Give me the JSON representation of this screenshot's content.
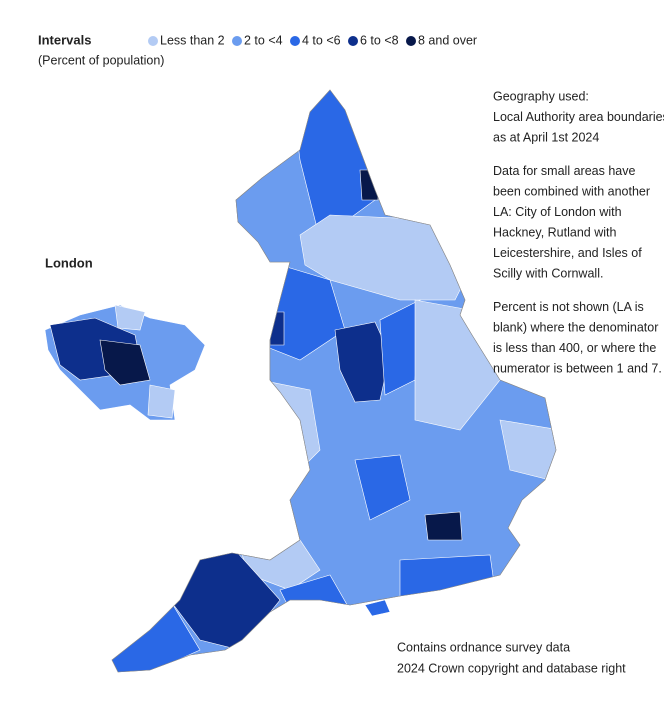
{
  "legend": {
    "title": "Intervals",
    "subtitle": "(Percent of population)",
    "items": [
      {
        "label": "Less than 2",
        "color": "#b3cbf4"
      },
      {
        "label": "2 to <4",
        "color": "#6b9cef"
      },
      {
        "label": "4 to <6",
        "color": "#2a68e6"
      },
      {
        "label": "6 to <8",
        "color": "#0d2f8c"
      },
      {
        "label": "8 and over",
        "color": "#07184a"
      }
    ]
  },
  "inset_title": "London",
  "notes": [
    [
      "Geography used:",
      "Local Authority area boundaries",
      "as at April 1st 2024"
    ],
    [
      "Data for small areas have",
      "been combined with another",
      "LA: City of London with",
      "Hackney, Rutland with",
      "Leicestershire, and Isles of",
      "Scilly with Cornwall."
    ],
    [
      "Percent is not shown (LA is",
      "blank) where the denominator",
      "is less than 400, or where the",
      "numerator is between 1 and 7."
    ]
  ],
  "footer": [
    "Contains ordnance survey data",
    "2024 Crown copyright and database right"
  ]
}
